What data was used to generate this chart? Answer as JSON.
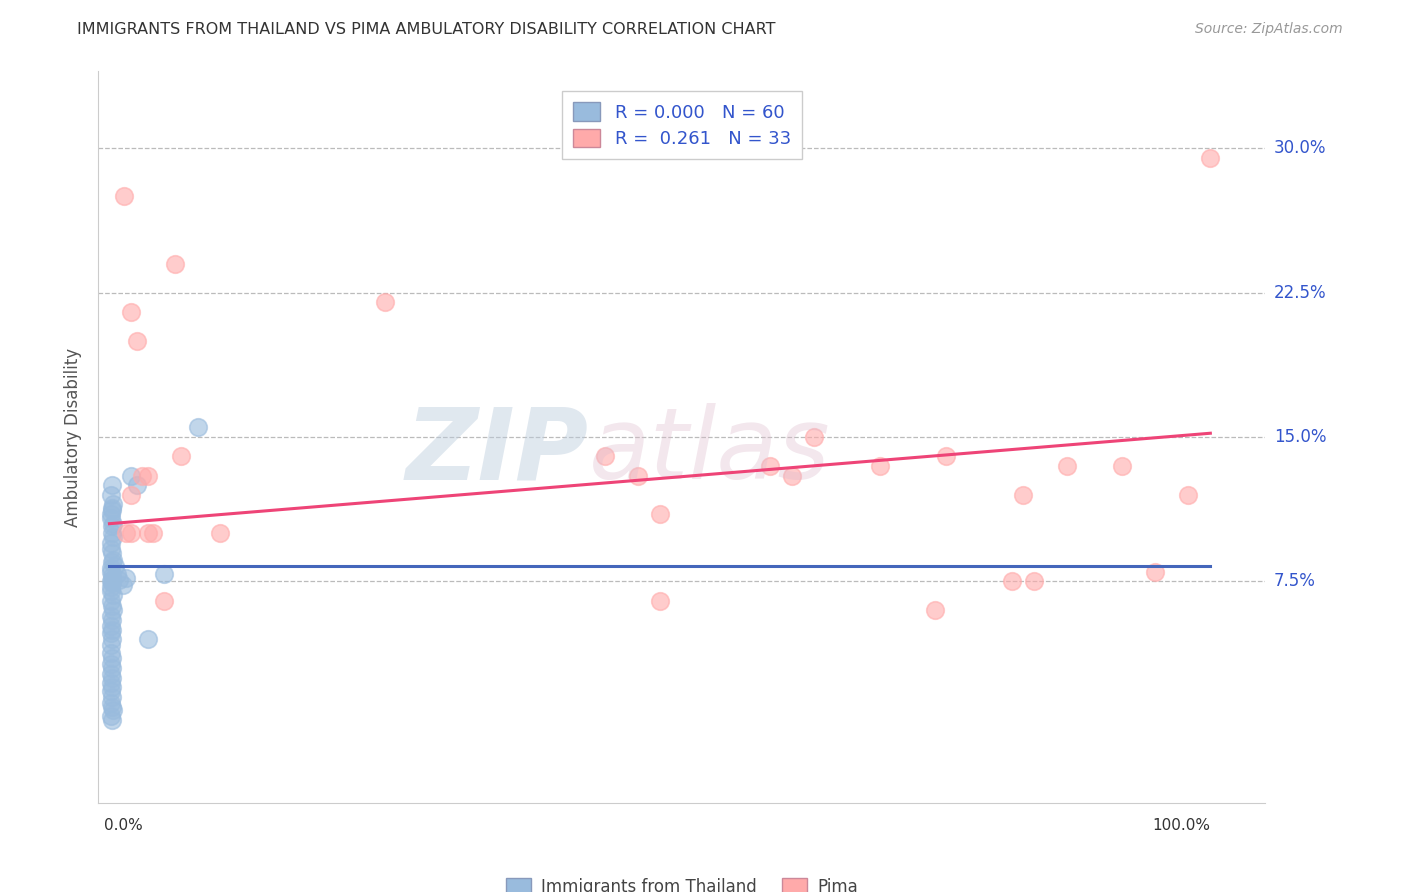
{
  "title": "IMMIGRANTS FROM THAILAND VS PIMA AMBULATORY DISABILITY CORRELATION CHART",
  "source": "Source: ZipAtlas.com",
  "ylabel": "Ambulatory Disability",
  "xlim": [
    -0.01,
    1.05
  ],
  "ylim": [
    -0.04,
    0.34
  ],
  "yticks": [
    0.075,
    0.15,
    0.225,
    0.3
  ],
  "ytick_labels": [
    "7.5%",
    "15.0%",
    "22.5%",
    "30.0%"
  ],
  "color_blue": "#99BBDD",
  "color_pink": "#FFAAAA",
  "color_blue_line": "#4466BB",
  "color_pink_line": "#EE4477",
  "color_r_text": "#3355CC",
  "legend_r1": "R = 0.000",
  "legend_n1": "N = 60",
  "legend_r2": "R =  0.261",
  "legend_n2": "N = 33",
  "blue_x": [
    0.001,
    0.002,
    0.001,
    0.003,
    0.002,
    0.001,
    0.002,
    0.003,
    0.001,
    0.002,
    0.001,
    0.002,
    0.001,
    0.003,
    0.002,
    0.001,
    0.002,
    0.003,
    0.001,
    0.002,
    0.001,
    0.001,
    0.002,
    0.002,
    0.003,
    0.001,
    0.002,
    0.003,
    0.001,
    0.002,
    0.001,
    0.002,
    0.001,
    0.002,
    0.001,
    0.001,
    0.002,
    0.001,
    0.002,
    0.001,
    0.002,
    0.001,
    0.002,
    0.001,
    0.002,
    0.001,
    0.002,
    0.003,
    0.001,
    0.002,
    0.005,
    0.007,
    0.009,
    0.012,
    0.015,
    0.02,
    0.025,
    0.035,
    0.05,
    0.08
  ],
  "blue_y": [
    0.08,
    0.085,
    0.092,
    0.098,
    0.104,
    0.11,
    0.112,
    0.115,
    0.12,
    0.125,
    0.075,
    0.078,
    0.082,
    0.086,
    0.09,
    0.095,
    0.1,
    0.105,
    0.108,
    0.113,
    0.07,
    0.072,
    0.074,
    0.076,
    0.068,
    0.065,
    0.062,
    0.06,
    0.057,
    0.055,
    0.052,
    0.05,
    0.048,
    0.045,
    0.042,
    0.038,
    0.035,
    0.032,
    0.03,
    0.027,
    0.025,
    0.022,
    0.02,
    0.018,
    0.015,
    0.012,
    0.01,
    0.008,
    0.005,
    0.003,
    0.083,
    0.079,
    0.076,
    0.073,
    0.077,
    0.13,
    0.125,
    0.045,
    0.079,
    0.155
  ],
  "pink_x": [
    0.013,
    0.02,
    0.025,
    0.03,
    0.02,
    0.035,
    0.06,
    0.035,
    0.04,
    0.25,
    0.45,
    0.48,
    0.5,
    0.5,
    0.6,
    0.62,
    0.64,
    0.7,
    0.75,
    0.76,
    0.82,
    0.83,
    0.84,
    0.87,
    0.92,
    0.95,
    0.98,
    0.015,
    0.02,
    0.05,
    0.065,
    0.1,
    1.0
  ],
  "pink_y": [
    0.275,
    0.215,
    0.2,
    0.13,
    0.12,
    0.13,
    0.24,
    0.1,
    0.1,
    0.22,
    0.14,
    0.13,
    0.065,
    0.11,
    0.135,
    0.13,
    0.15,
    0.135,
    0.06,
    0.14,
    0.075,
    0.12,
    0.075,
    0.135,
    0.135,
    0.08,
    0.12,
    0.1,
    0.1,
    0.065,
    0.14,
    0.1,
    0.295
  ],
  "blue_line_x": [
    0.0,
    1.0
  ],
  "blue_line_y": [
    0.083,
    0.083
  ],
  "pink_line_x": [
    0.0,
    1.0
  ],
  "pink_line_y": [
    0.105,
    0.152
  ]
}
